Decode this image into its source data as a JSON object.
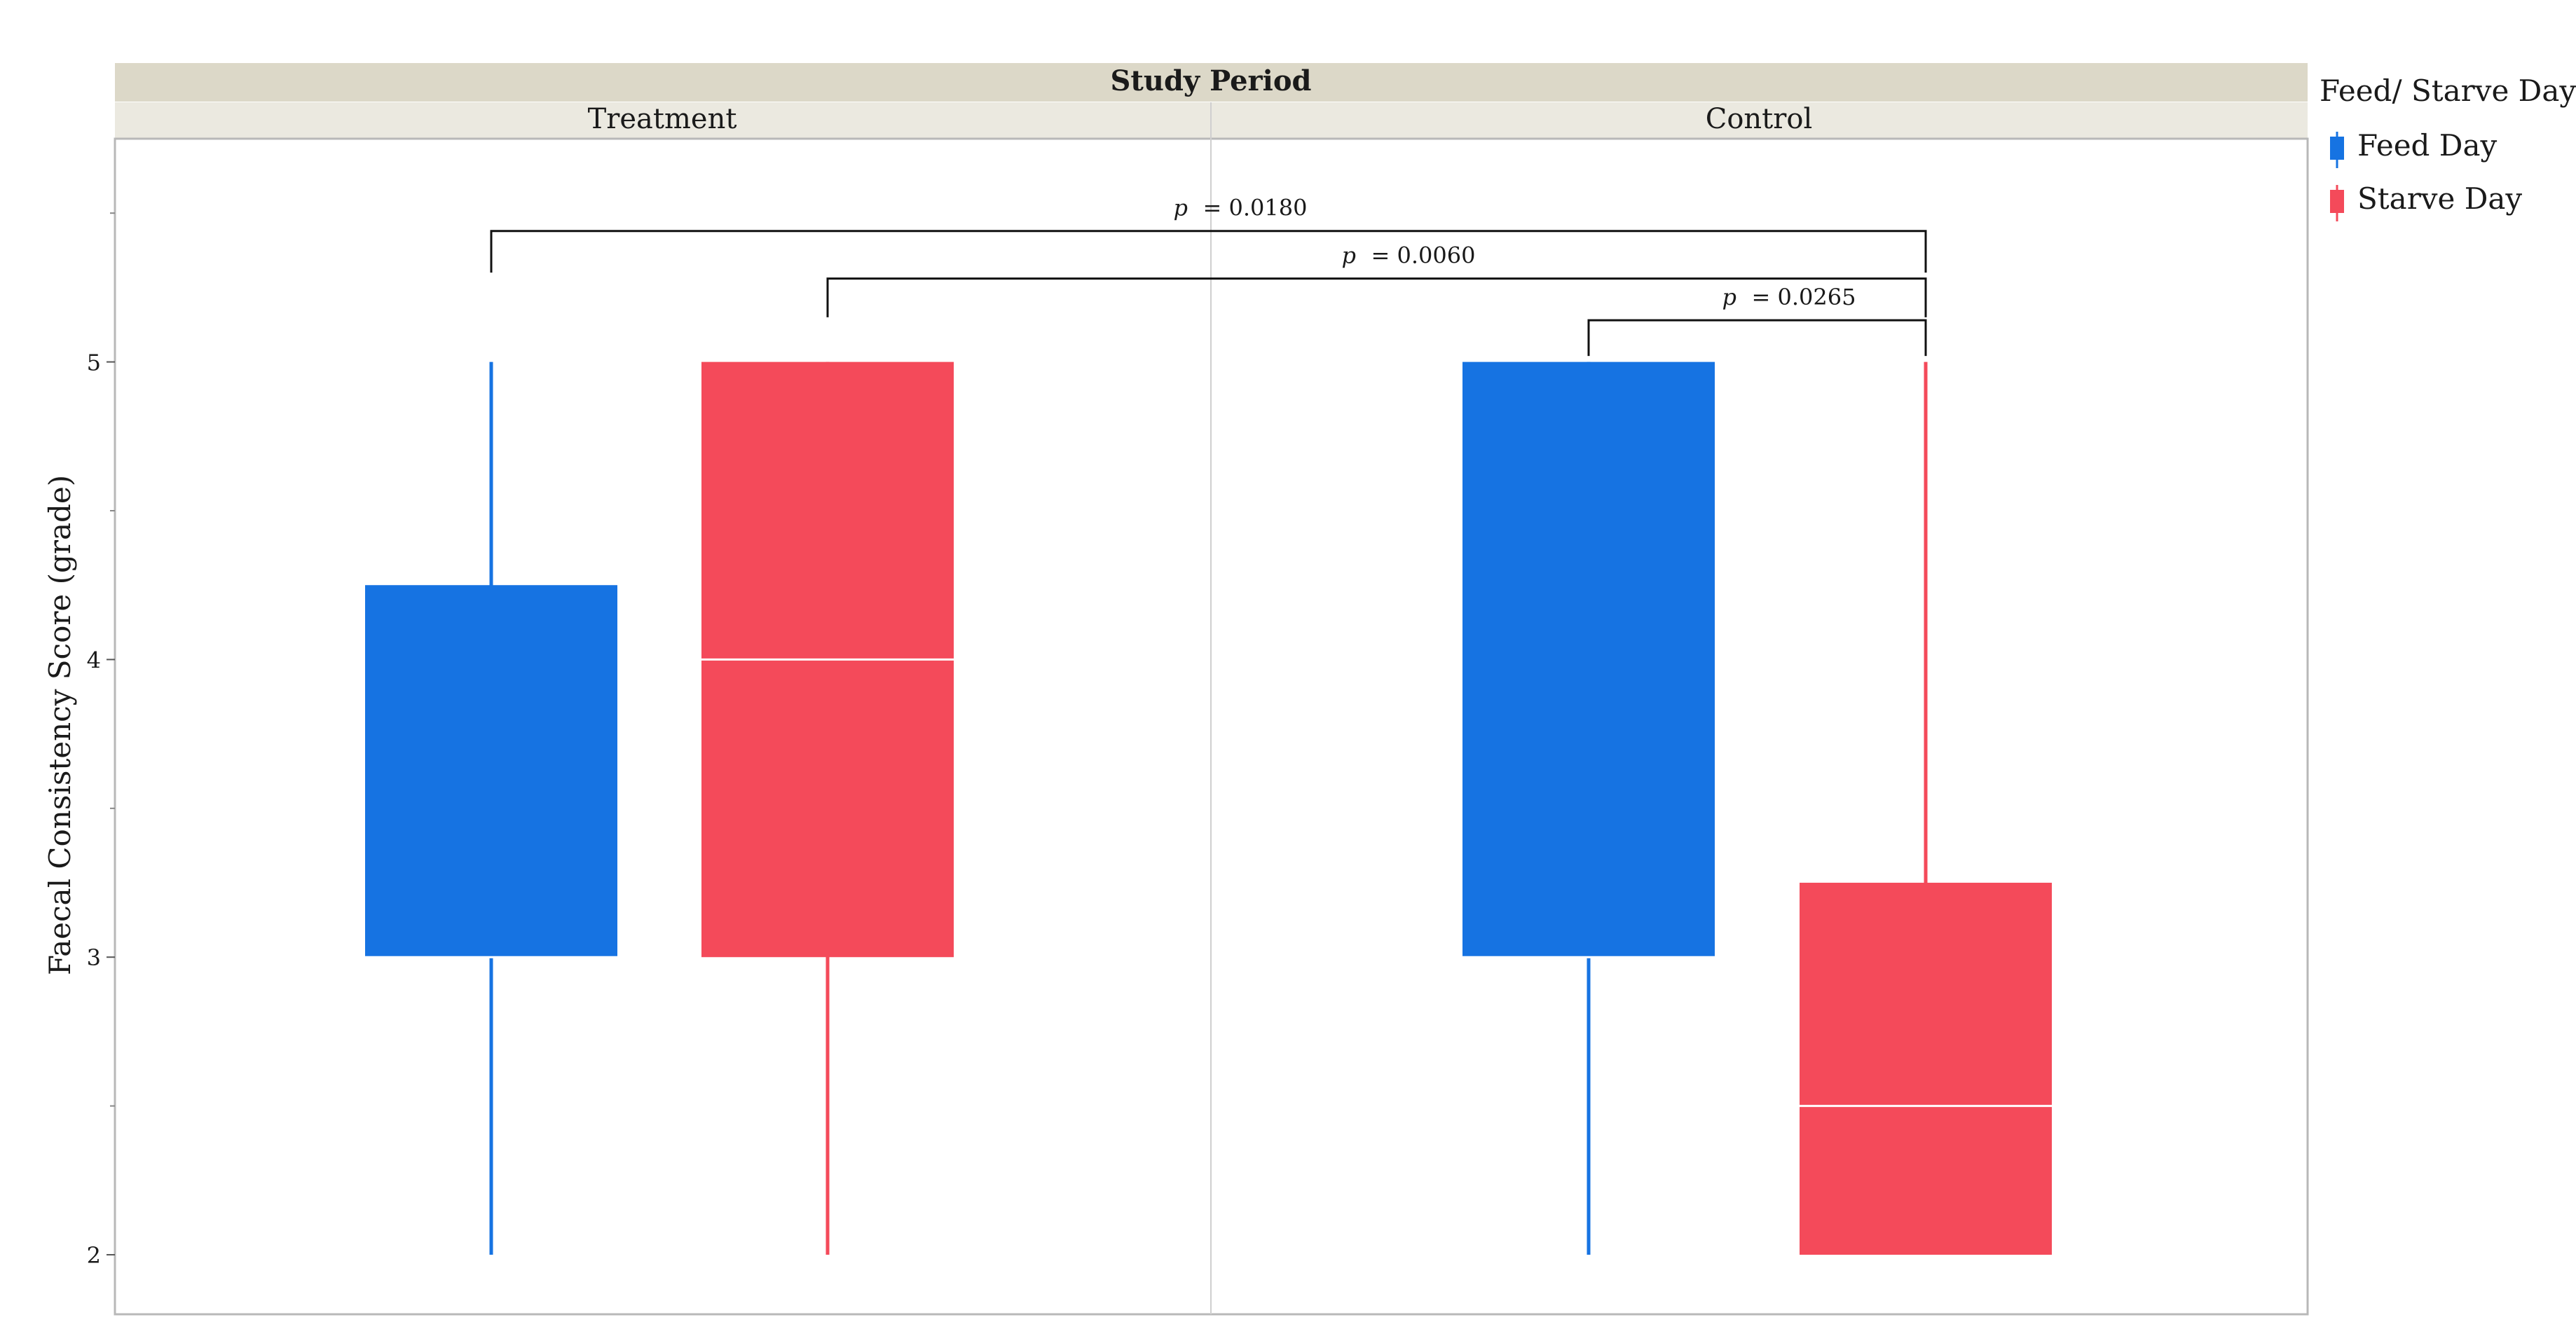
{
  "chart_data": {
    "type": "boxplot",
    "panel_title": "Study Period",
    "panels": [
      "Treatment",
      "Control"
    ],
    "ylabel": "Faecal Consistency Score (grade)",
    "ylim": [
      1.8,
      5.75
    ],
    "yticks": [
      2,
      3,
      4,
      5
    ],
    "ytick_labels": [
      "2",
      "3",
      "4",
      "5"
    ],
    "grid": false,
    "legend": {
      "title": "Feed/ Starve Day",
      "position": "right",
      "items": [
        {
          "name": "Feed Day",
          "color": "#1673e2"
        },
        {
          "name": "Starve Day",
          "color": "#f44a5a"
        }
      ]
    },
    "groups": [
      {
        "panel": "Treatment",
        "series": "Feed Day",
        "color": "#1673e2",
        "min": 2,
        "q1": 3,
        "median": 3,
        "q3": 4.25,
        "max": 5
      },
      {
        "panel": "Treatment",
        "series": "Starve Day",
        "color": "#f44a5a",
        "min": 2,
        "q1": 3,
        "median": 4,
        "q3": 5,
        "max": 5
      },
      {
        "panel": "Control",
        "series": "Feed Day",
        "color": "#1673e2",
        "min": 2,
        "q1": 3,
        "median": 3,
        "q3": 5,
        "max": 5
      },
      {
        "panel": "Control",
        "series": "Starve Day",
        "color": "#f44a5a",
        "min": 2,
        "q1": 2,
        "median": 2.5,
        "q3": 3.25,
        "max": 5
      }
    ],
    "annotations": [
      {
        "label": "p",
        "value": "= 0.0180",
        "from_group": 0,
        "to_group": 3,
        "level": 5.44,
        "from_tick": 5.3,
        "to_tick": 5.3
      },
      {
        "label": "p",
        "value": "= 0.0060",
        "from_group": 1,
        "to_group": 3,
        "level": 5.28,
        "from_tick": 5.15,
        "to_tick": 5.15
      },
      {
        "label": "p",
        "value": "= 0.0265",
        "from_group": 2,
        "to_group": 3,
        "level": 5.14,
        "from_tick": 5.02,
        "to_tick": 5.02
      }
    ]
  }
}
